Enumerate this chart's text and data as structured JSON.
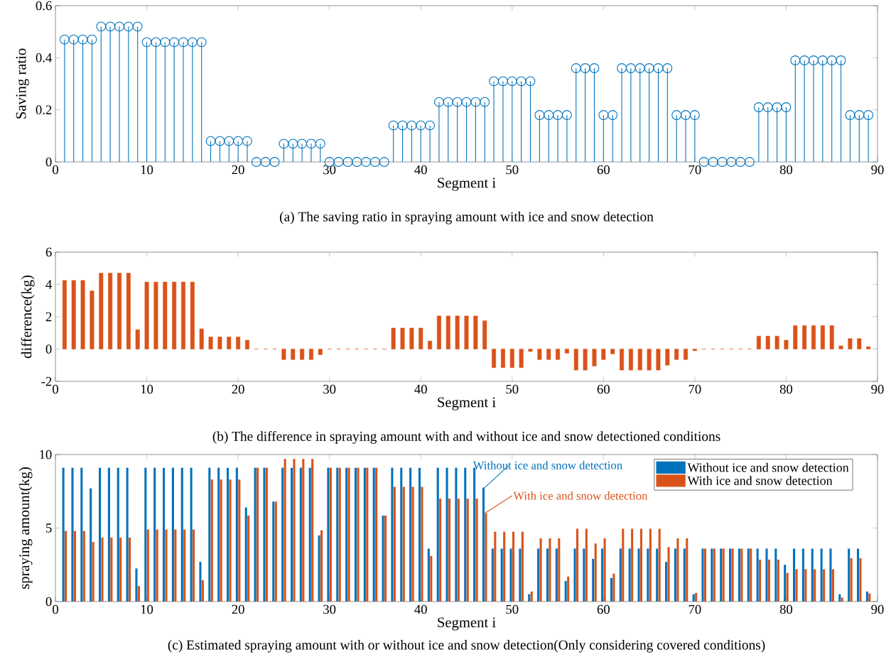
{
  "chart_data": [
    {
      "type": "lollipop",
      "title": "(a) The saving ratio in spraying amount with ice and snow detection",
      "xlabel": "Segment i",
      "ylabel": "Saving ratio",
      "color": "#0072bd",
      "marker": "circle",
      "x": [
        1,
        2,
        3,
        4,
        5,
        6,
        7,
        8,
        9,
        10,
        11,
        12,
        13,
        14,
        15,
        16,
        17,
        18,
        19,
        20,
        21,
        22,
        23,
        24,
        25,
        26,
        27,
        28,
        29,
        30,
        31,
        32,
        33,
        34,
        35,
        36,
        37,
        38,
        39,
        40,
        41,
        42,
        43,
        44,
        45,
        46,
        47,
        48,
        49,
        50,
        51,
        52,
        53,
        54,
        55,
        56,
        57,
        58,
        59,
        60,
        61,
        62,
        63,
        64,
        65,
        66,
        67,
        68,
        69,
        70,
        71,
        72,
        73,
        74,
        75,
        76,
        77,
        78,
        79,
        80,
        81,
        82,
        83,
        84,
        85,
        86,
        87,
        88,
        89
      ],
      "values": [
        0.47,
        0.47,
        0.47,
        0.47,
        0.52,
        0.52,
        0.52,
        0.52,
        0.52,
        0.46,
        0.46,
        0.46,
        0.46,
        0.46,
        0.46,
        0.46,
        0.08,
        0.08,
        0.08,
        0.08,
        0.08,
        0,
        0,
        0,
        0.07,
        0.07,
        0.07,
        0.07,
        0.07,
        0,
        0,
        0,
        0,
        0,
        0,
        0,
        0.14,
        0.14,
        0.14,
        0.14,
        0.14,
        0.23,
        0.23,
        0.23,
        0.23,
        0.23,
        0.23,
        0.31,
        0.31,
        0.31,
        0.31,
        0.31,
        0.18,
        0.18,
        0.18,
        0.18,
        0.36,
        0.36,
        0.36,
        0.18,
        0.18,
        0.36,
        0.36,
        0.36,
        0.36,
        0.36,
        0.36,
        0.18,
        0.18,
        0.18,
        0,
        0,
        0,
        0,
        0,
        0,
        0.21,
        0.21,
        0.21,
        0.21,
        0.39,
        0.39,
        0.39,
        0.39,
        0.39,
        0.39,
        0.18,
        0.18,
        0.18
      ],
      "xlim": [
        0,
        90
      ],
      "xticks": [
        0,
        10,
        20,
        30,
        40,
        50,
        60,
        70,
        80,
        90
      ],
      "ylim": [
        0,
        0.6
      ],
      "yticks": [
        0,
        0.2,
        0.4,
        0.6
      ]
    },
    {
      "type": "bar",
      "title": "(b) The difference in spraying amount with and without ice and snow detectioned conditions",
      "xlabel": "Segment i",
      "ylabel": "difference(kg)",
      "color": "#d95319",
      "x": [
        1,
        2,
        3,
        4,
        5,
        6,
        7,
        8,
        9,
        10,
        11,
        12,
        13,
        14,
        15,
        16,
        17,
        18,
        19,
        20,
        21,
        22,
        23,
        24,
        25,
        26,
        27,
        28,
        29,
        30,
        31,
        32,
        33,
        34,
        35,
        36,
        37,
        38,
        39,
        40,
        41,
        42,
        43,
        44,
        45,
        46,
        47,
        48,
        49,
        50,
        51,
        52,
        53,
        54,
        55,
        56,
        57,
        58,
        59,
        60,
        61,
        62,
        63,
        64,
        65,
        66,
        67,
        68,
        69,
        70,
        71,
        72,
        73,
        74,
        75,
        76,
        77,
        78,
        79,
        80,
        81,
        82,
        83,
        84,
        85,
        86,
        87,
        88,
        89
      ],
      "values": [
        4.25,
        4.25,
        4.25,
        3.6,
        4.7,
        4.7,
        4.7,
        4.7,
        1.2,
        4.15,
        4.15,
        4.15,
        4.15,
        4.15,
        4.15,
        1.25,
        0.75,
        0.75,
        0.75,
        0.75,
        0.55,
        0,
        0,
        0,
        -0.65,
        -0.65,
        -0.65,
        -0.65,
        -0.35,
        0,
        0,
        0,
        0,
        0,
        0,
        0,
        1.3,
        1.3,
        1.3,
        1.3,
        0.5,
        2.05,
        2.05,
        2.05,
        2.05,
        2.05,
        1.75,
        -1.15,
        -1.15,
        -1.15,
        -1.15,
        -0.15,
        -0.65,
        -0.65,
        -0.65,
        -0.25,
        -1.3,
        -1.3,
        -1.05,
        -0.65,
        -0.3,
        -1.3,
        -1.3,
        -1.3,
        -1.3,
        -1.3,
        -1,
        -0.65,
        -0.65,
        -0.1,
        0,
        0,
        0,
        0,
        0,
        0,
        0.8,
        0.8,
        0.8,
        0.55,
        1.45,
        1.45,
        1.45,
        1.45,
        1.45,
        0.2,
        0.65,
        0.65,
        0.15
      ],
      "xlim": [
        0,
        90
      ],
      "xticks": [
        0,
        10,
        20,
        30,
        40,
        50,
        60,
        70,
        80,
        90
      ],
      "ylim": [
        -2,
        6
      ],
      "yticks": [
        -2,
        0,
        2,
        4,
        6
      ]
    },
    {
      "type": "bar",
      "title": "(c) Estimated spraying amount with or without ice and snow detection(Only considering covered conditions)",
      "xlabel": "Segment i",
      "ylabel": "spraying amount(kg)",
      "legend": "top right",
      "x": [
        1,
        2,
        3,
        4,
        5,
        6,
        7,
        8,
        9,
        10,
        11,
        12,
        13,
        14,
        15,
        16,
        17,
        18,
        19,
        20,
        21,
        22,
        23,
        24,
        25,
        26,
        27,
        28,
        29,
        30,
        31,
        32,
        33,
        34,
        35,
        36,
        37,
        38,
        39,
        40,
        41,
        42,
        43,
        44,
        45,
        46,
        47,
        48,
        49,
        50,
        51,
        52,
        53,
        54,
        55,
        56,
        57,
        58,
        59,
        60,
        61,
        62,
        63,
        64,
        65,
        66,
        67,
        68,
        69,
        70,
        71,
        72,
        73,
        74,
        75,
        76,
        77,
        78,
        79,
        80,
        81,
        82,
        83,
        84,
        85,
        86,
        87,
        88,
        89
      ],
      "series": [
        {
          "name": "Without ice and snow detection",
          "color": "#0072bd",
          "values": [
            9.1,
            9.1,
            9.1,
            7.7,
            9.1,
            9.1,
            9.1,
            9.1,
            2.25,
            9.1,
            9.1,
            9.1,
            9.1,
            9.1,
            9.1,
            2.7,
            9.1,
            9.1,
            9.1,
            9.1,
            6.4,
            9.1,
            9.1,
            6.8,
            9.1,
            9.1,
            9.1,
            9.1,
            4.5,
            9.1,
            9.1,
            9.1,
            9.1,
            9.1,
            9.1,
            5.85,
            9.1,
            9.1,
            9.1,
            9.1,
            3.6,
            9.1,
            9.1,
            9.1,
            9.1,
            9.1,
            7.75,
            3.6,
            3.6,
            3.6,
            3.6,
            0.5,
            3.6,
            3.6,
            3.6,
            1.4,
            3.6,
            3.6,
            2.9,
            3.6,
            1.6,
            3.6,
            3.6,
            3.6,
            3.6,
            3.6,
            2.7,
            3.6,
            3.6,
            0.5,
            3.6,
            3.6,
            3.6,
            3.6,
            3.6,
            3.6,
            3.6,
            3.6,
            3.6,
            2.5,
            3.6,
            3.6,
            3.6,
            3.6,
            3.6,
            0.5,
            3.6,
            3.6,
            0.68
          ]
        },
        {
          "name": "With ice and snow detection",
          "color": "#d95319",
          "values": [
            4.8,
            4.8,
            4.8,
            4.05,
            4.35,
            4.35,
            4.35,
            4.35,
            1.05,
            4.9,
            4.9,
            4.9,
            4.9,
            4.9,
            4.9,
            1.45,
            8.3,
            8.3,
            8.3,
            8.3,
            5.85,
            9.1,
            9.1,
            6.8,
            9.7,
            9.7,
            9.7,
            9.7,
            4.85,
            9.1,
            9.1,
            9.1,
            9.1,
            9.1,
            9.1,
            5.85,
            7.8,
            7.8,
            7.8,
            7.8,
            3.1,
            7,
            7,
            7,
            7,
            7,
            6,
            4.75,
            4.75,
            4.75,
            4.75,
            0.68,
            4.3,
            4.3,
            4.3,
            1.7,
            4.95,
            4.95,
            3.95,
            4.3,
            1.9,
            4.95,
            4.95,
            4.95,
            4.95,
            4.95,
            3.7,
            4.3,
            4.3,
            0.58,
            3.6,
            3.6,
            3.6,
            3.6,
            3.6,
            3.6,
            2.85,
            2.85,
            2.85,
            1.95,
            2.2,
            2.2,
            2.2,
            2.2,
            2.2,
            0.27,
            2.95,
            2.95,
            0.55
          ]
        }
      ],
      "annotations": [
        {
          "text": "Without ice and snow detection",
          "x": 47,
          "y": 7.75
        },
        {
          "text": "With ice and snow detection",
          "x": 47,
          "y": 6
        }
      ],
      "xlim": [
        0,
        90
      ],
      "xticks": [
        0,
        10,
        20,
        30,
        40,
        50,
        60,
        70,
        80,
        90
      ],
      "ylim": [
        0,
        10
      ],
      "yticks": [
        0,
        5,
        10
      ]
    }
  ]
}
